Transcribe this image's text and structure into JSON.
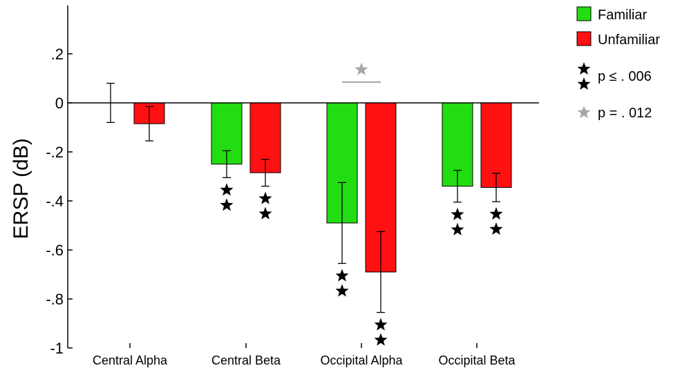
{
  "chart_data": {
    "type": "bar",
    "title": "",
    "xlabel": "",
    "ylabel": "ERSP (dB)",
    "ylim": [
      -1,
      0.35
    ],
    "yticks": [
      0.2,
      0,
      -0.2,
      -0.4,
      -0.6,
      -0.8,
      -1
    ],
    "ytick_labels": [
      ".2",
      "0",
      "-.2",
      "-.4",
      "-.6",
      "-.8",
      "-1"
    ],
    "categories": [
      "Central Alpha",
      "Central Beta",
      "Occipital Alpha",
      "Occipital Beta"
    ],
    "series": [
      {
        "name": "Familiar",
        "color": "#22dd11",
        "values": [
          0.0,
          -0.25,
          -0.49,
          -0.34
        ],
        "error": [
          0.08,
          0.055,
          0.165,
          0.065
        ],
        "significance_stars": [
          0,
          2,
          2,
          2
        ]
      },
      {
        "name": "Unfamiliar",
        "color": "#ff1111",
        "values": [
          -0.085,
          -0.285,
          -0.69,
          -0.345
        ],
        "error": [
          0.07,
          0.055,
          0.165,
          0.058
        ],
        "significance_stars": [
          0,
          2,
          2,
          2
        ]
      }
    ],
    "comparison": {
      "category": "Occipital Alpha",
      "y": 0.085,
      "color": "#a6a6a6"
    },
    "legend": {
      "position": "top-right",
      "entries": [
        {
          "label": "Familiar",
          "type": "swatch",
          "color": "#22dd11"
        },
        {
          "label": "Unfamiliar",
          "type": "swatch",
          "color": "#ff1111"
        },
        {
          "label": "p ≤ . 006",
          "type": "double-star",
          "color": "#000000"
        },
        {
          "label": "p = . 012",
          "type": "star",
          "color": "#a6a6a6"
        }
      ]
    }
  }
}
